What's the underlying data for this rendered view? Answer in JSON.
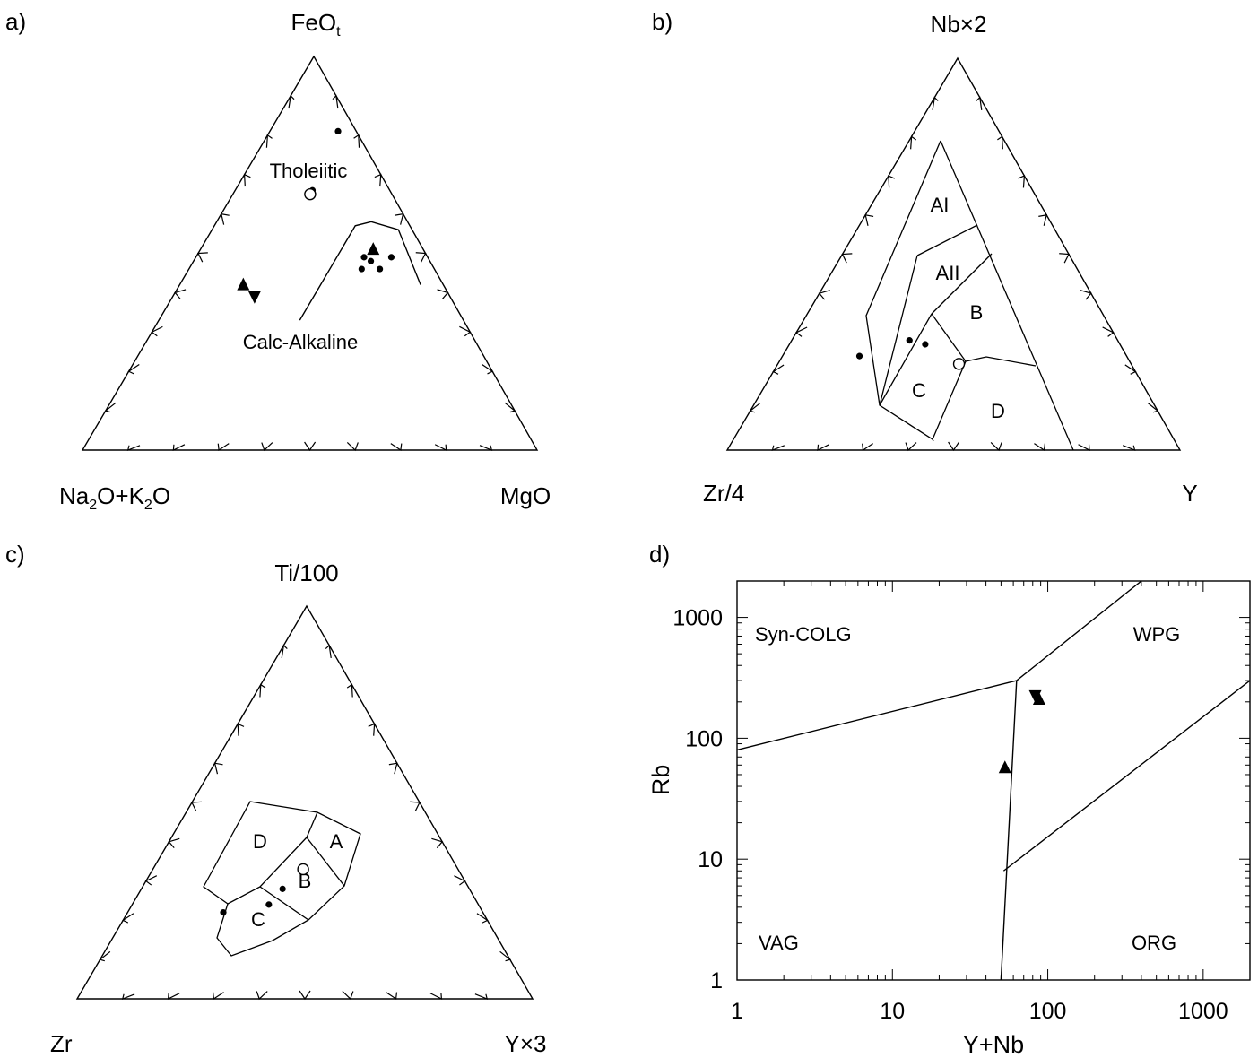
{
  "chart_data": [
    {
      "panel": "a)",
      "type": "ternary",
      "apices": {
        "top": {
          "main": "FeO",
          "sub": "t"
        },
        "left": {
          "parts": [
            [
              "Na",
              ""
            ],
            [
              "2",
              "sub"
            ],
            [
              "O+K",
              ""
            ],
            [
              "2",
              "sub"
            ],
            [
              "O",
              ""
            ]
          ]
        },
        "right": "MgO"
      },
      "regions": [
        "Tholeiitic",
        "Calc-Alkaline"
      ],
      "boundary": [
        [
          0.05,
          0.42,
          0.53
        ],
        [
          0.03,
          0.56,
          0.41
        ],
        [
          0.08,
          0.58,
          0.34
        ],
        [
          0.12,
          0.57,
          0.31
        ],
        [
          0.36,
          0.33,
          0.31
        ]
      ],
      "points": [
        {
          "marker": "dot",
          "abc": [
            0.04,
            0.81,
            0.15
          ]
        },
        {
          "marker": "dot",
          "abc": [
            0.17,
            0.66,
            0.17
          ]
        },
        {
          "marker": "circle",
          "abc": [
            0.18,
            0.65,
            0.17
          ]
        },
        {
          "marker": "dot",
          "abc": [
            0.16,
            0.46,
            0.38
          ]
        },
        {
          "marker": "dot",
          "abc": [
            0.14,
            0.49,
            0.37
          ]
        },
        {
          "marker": "dot",
          "abc": [
            0.12,
            0.46,
            0.42
          ]
        },
        {
          "marker": "dot",
          "abc": [
            0.13,
            0.48,
            0.39
          ]
        },
        {
          "marker": "dot",
          "abc": [
            0.08,
            0.49,
            0.43
          ]
        },
        {
          "marker": "triangle-up",
          "abc": [
            0.11,
            0.51,
            0.38
          ]
        },
        {
          "marker": "triangle-up",
          "abc": [
            0.44,
            0.42,
            0.14
          ]
        },
        {
          "marker": "triangle-down",
          "abc": [
            0.43,
            0.39,
            0.18
          ]
        }
      ]
    },
    {
      "panel": "b)",
      "type": "ternary",
      "apices": {
        "top": "Nb×2",
        "left": "Zr/4",
        "right": "Y"
      },
      "regions": [
        "AI",
        "AII",
        "B",
        "C",
        "D"
      ],
      "points": [
        {
          "marker": "dot",
          "abc": [
            0.59,
            0.24,
            0.17
          ]
        },
        {
          "marker": "dot",
          "abc": [
            0.46,
            0.28,
            0.26
          ]
        },
        {
          "marker": "dot",
          "abc": [
            0.43,
            0.27,
            0.3
          ]
        },
        {
          "marker": "circle",
          "abc": [
            0.38,
            0.22,
            0.4
          ]
        }
      ]
    },
    {
      "panel": "c)",
      "type": "ternary",
      "apices": {
        "top": "Ti/100",
        "left": "Zr",
        "right": "Y×3"
      },
      "regions": [
        "D",
        "A",
        "B",
        "C"
      ],
      "points": [
        {
          "marker": "dot",
          "abc": [
            0.57,
            0.22,
            0.21
          ]
        },
        {
          "marker": "dot",
          "abc": [
            0.46,
            0.24,
            0.3
          ]
        },
        {
          "marker": "dot",
          "abc": [
            0.41,
            0.28,
            0.31
          ]
        },
        {
          "marker": "circle",
          "abc": [
            0.34,
            0.33,
            0.33
          ]
        }
      ]
    },
    {
      "panel": "d)",
      "type": "scatter",
      "xlabel": "Y+Nb",
      "ylabel": "Rb",
      "xscale": "log",
      "yscale": "log",
      "xlim": [
        1,
        2000
      ],
      "ylim": [
        1,
        2000
      ],
      "xticks": [
        1,
        10,
        100,
        1000
      ],
      "yticks": [
        1,
        10,
        100,
        1000
      ],
      "regions": [
        "Syn-COLG",
        "WPG",
        "VAG",
        "ORG"
      ],
      "boundaries": [
        [
          [
            1,
            80
          ],
          [
            63,
            300
          ]
        ],
        [
          [
            63,
            300
          ],
          [
            400,
            2000
          ]
        ],
        [
          [
            63,
            300
          ],
          [
            50,
            1
          ]
        ],
        [
          [
            52,
            8
          ],
          [
            2000,
            300
          ]
        ]
      ],
      "points": [
        {
          "marker": "triangle-up",
          "x": 53,
          "y": 57
        },
        {
          "marker": "triangle-down",
          "x": 83,
          "y": 225
        },
        {
          "marker": "triangle-up",
          "x": 88,
          "y": 210
        }
      ]
    }
  ]
}
